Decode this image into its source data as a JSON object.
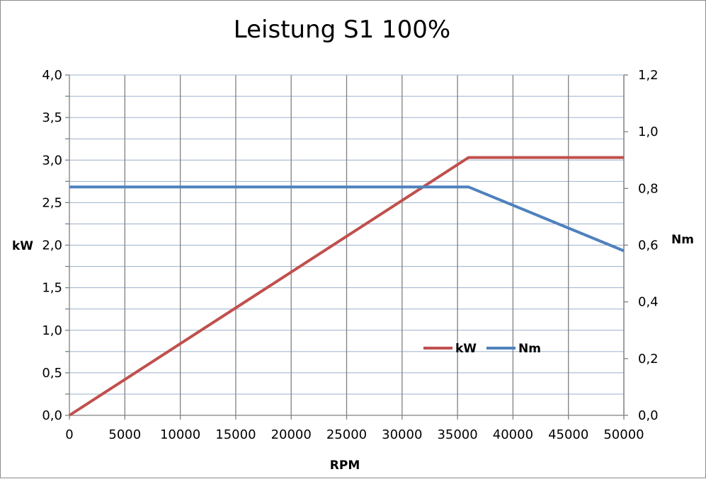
{
  "chart_data": {
    "type": "line",
    "title": "Leistung S1 100%",
    "xlabel": "RPM",
    "ylabel": "kW",
    "y2label": "Nm",
    "xlim": [
      0,
      50000
    ],
    "ylim": [
      0,
      4.0
    ],
    "y2lim": [
      0,
      1.2
    ],
    "x_ticks": [
      "0",
      "5000",
      "10000",
      "15000",
      "20000",
      "25000",
      "30000",
      "35000",
      "40000",
      "45000",
      "50000"
    ],
    "y_ticks": [
      "0,0",
      "0,5",
      "1,0",
      "1,5",
      "2,0",
      "2,5",
      "3,0",
      "3,5",
      "4,0"
    ],
    "y2_ticks": [
      "0,0",
      "0,2",
      "0,4",
      "0,6",
      "0,8",
      "1,0",
      "1,2"
    ],
    "grid": true,
    "legend_position": "lower-right",
    "series": [
      {
        "name": "kW",
        "axis": "left",
        "color": "#c0504d",
        "x": [
          0,
          36000,
          50000
        ],
        "values": [
          0.0,
          3.03,
          3.03
        ]
      },
      {
        "name": "Nm",
        "axis": "right",
        "color": "#4f81bd",
        "x": [
          0,
          36000,
          50000
        ],
        "values": [
          0.805,
          0.805,
          0.58
        ]
      }
    ]
  }
}
